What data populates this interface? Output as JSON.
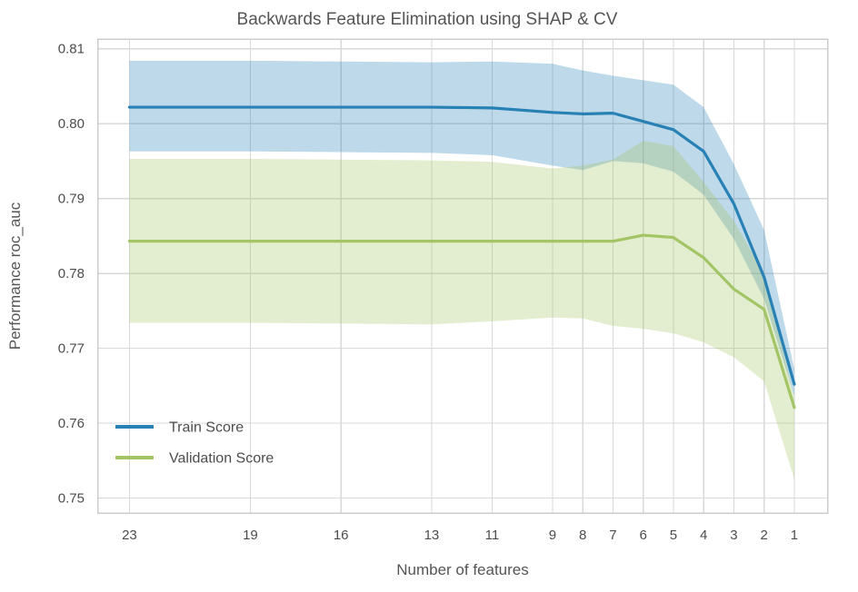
{
  "title": "Backwards Feature Elimination using SHAP & CV",
  "colors": {
    "train_line": "#2781b5",
    "validation_line": "#a3c565",
    "train_band": "rgba(39, 129, 181, 0.30)",
    "validation_band": "rgba(163, 197, 101, 0.30)",
    "grid": "#d9d9d9",
    "spine": "#cccccc",
    "title_text": "#555555",
    "tick_text": "#4c4c4c"
  },
  "legend": {
    "position": "lower left",
    "items": [
      {
        "label": "Train Score",
        "series": "train"
      },
      {
        "label": "Validation Score",
        "series": "validation"
      }
    ]
  },
  "chart_data": {
    "type": "line",
    "title": "Backwards Feature Elimination using SHAP & CV",
    "xlabel": "Number of features",
    "ylabel": "Performance roc_auc",
    "grid": true,
    "x_reversed": true,
    "x": [
      23,
      19,
      16,
      13,
      11,
      9,
      8,
      7,
      6,
      5,
      4,
      3,
      2,
      1
    ],
    "x_ticks": [
      "23",
      "19",
      "16",
      "13",
      "11",
      "9",
      "8",
      "7",
      "6",
      "5",
      "4",
      "3",
      "2",
      "1"
    ],
    "y_ticks": [
      "0.75",
      "0.76",
      "0.77",
      "0.78",
      "0.79",
      "0.80",
      "0.81"
    ],
    "y_tick_values": [
      0.75,
      0.76,
      0.77,
      0.78,
      0.79,
      0.8,
      0.81
    ],
    "xlim": [
      24.05,
      -0.1
    ],
    "ylim": [
      0.748,
      0.8113
    ],
    "legend_position": "lower left",
    "series": [
      {
        "name": "Train Score",
        "color_key": "train",
        "values": [
          0.8022,
          0.8022,
          0.8022,
          0.8022,
          0.8021,
          0.8015,
          0.8013,
          0.8014,
          0.8003,
          0.7992,
          0.7963,
          0.7893,
          0.7795,
          0.7652
        ],
        "band_upper": [
          0.8084,
          0.8084,
          0.8083,
          0.8082,
          0.8083,
          0.808,
          0.8071,
          0.8064,
          0.8058,
          0.8052,
          0.8022,
          0.7946,
          0.7858,
          0.7672
        ],
        "band_lower": [
          0.7963,
          0.7963,
          0.7962,
          0.7961,
          0.7958,
          0.7944,
          0.7938,
          0.795,
          0.7947,
          0.7936,
          0.7905,
          0.7846,
          0.7766,
          0.7636
        ]
      },
      {
        "name": "Validation Score",
        "color_key": "validation",
        "values": [
          0.7843,
          0.7843,
          0.7843,
          0.7843,
          0.7843,
          0.7843,
          0.7843,
          0.7843,
          0.7851,
          0.7848,
          0.7821,
          0.7779,
          0.7752,
          0.7621
        ],
        "band_upper": [
          0.7953,
          0.7953,
          0.7952,
          0.7951,
          0.7949,
          0.794,
          0.7944,
          0.7952,
          0.7977,
          0.797,
          0.7922,
          0.787,
          0.78,
          0.7635
        ],
        "band_lower": [
          0.7734,
          0.7734,
          0.7733,
          0.7732,
          0.7736,
          0.7741,
          0.774,
          0.773,
          0.7726,
          0.772,
          0.7708,
          0.7688,
          0.7656,
          0.7525
        ]
      }
    ]
  }
}
